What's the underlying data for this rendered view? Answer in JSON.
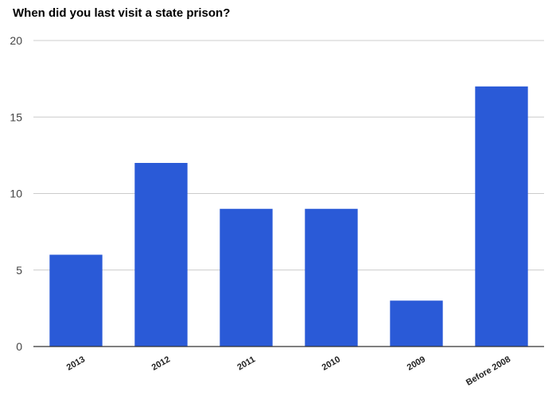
{
  "chart_data": {
    "type": "bar",
    "title": "When did you last visit a state prison?",
    "categories": [
      "2013",
      "2012",
      "2011",
      "2010",
      "2009",
      "Before 2008"
    ],
    "values": [
      6,
      12,
      9,
      9,
      3,
      17
    ],
    "ylim": [
      0,
      20
    ],
    "yticks": [
      "0",
      "5",
      "10",
      "15",
      "20"
    ],
    "xlabel": "",
    "ylabel": "",
    "grid": true,
    "legend": "none",
    "bar_color": "#2a5ad7",
    "grid_color": "#cccccc",
    "axis_color": "#333333"
  }
}
